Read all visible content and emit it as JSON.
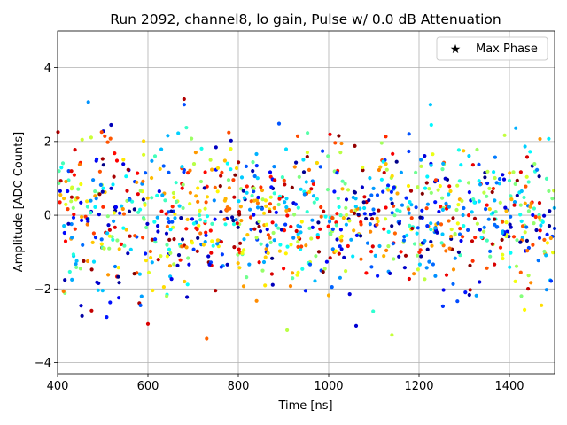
{
  "chart_data": {
    "type": "scatter",
    "title": "Run 2092, channel8, lo gain, Pulse w/ 0.0 dB Attenuation",
    "xlabel": "Time [ns]",
    "ylabel": "Amplitude [ADC Counts]",
    "xlim": [
      400,
      1500
    ],
    "ylim": [
      -4.3,
      5.0
    ],
    "xticks": [
      400,
      600,
      800,
      1000,
      1200,
      1400
    ],
    "yticks": [
      -4,
      -2,
      0,
      2,
      4
    ],
    "xtick_labels": [
      "400",
      "600",
      "800",
      "1000",
      "1200",
      "1400"
    ],
    "ytick_labels": [
      "−4",
      "−2",
      "0",
      "2",
      "4"
    ],
    "grid": true,
    "legend": {
      "placement": "top-right",
      "entries": [
        {
          "label": "Max Phase",
          "marker": "star",
          "color": "#000000"
        }
      ]
    },
    "colormap": "jet",
    "series": [
      {
        "marker": "circle",
        "color_note": "each point colored by jet colormap (phase)",
        "points_summary": {
          "x_range": [
            400,
            1500
          ],
          "y_center": 0.0,
          "y_spread_sd": 1.0,
          "approx_count": 1100,
          "extreme_points": [
            {
              "x": 680,
              "y": 3.15
            },
            {
              "x": 468,
              "y": 3.07
            },
            {
              "x": 730,
              "y": -3.35
            },
            {
              "x": 1140,
              "y": -3.25
            },
            {
              "x": 908,
              "y": -3.12
            },
            {
              "x": 600,
              "y": -2.95
            }
          ]
        }
      }
    ]
  }
}
